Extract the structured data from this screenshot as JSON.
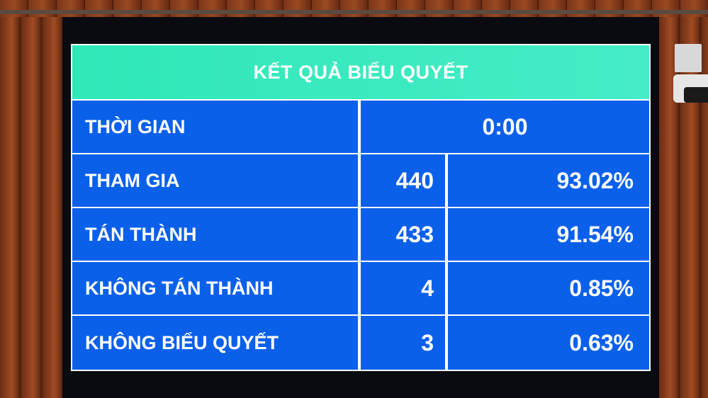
{
  "board": {
    "title": "KẾT QUẢ BIỂU QUYẾT",
    "time_label": "THỜI GIAN",
    "time_value": "0:00",
    "rows": [
      {
        "label": "THAM GIA",
        "count": "440",
        "percent": "93.02%"
      },
      {
        "label": "TÁN THÀNH",
        "count": "433",
        "percent": "91.54%"
      },
      {
        "label": "KHÔNG TÁN THÀNH",
        "count": "4",
        "percent": "0.85%"
      },
      {
        "label": "KHÔNG BIỂU QUYẾT",
        "count": "3",
        "percent": "0.63%"
      }
    ]
  },
  "colors": {
    "header": "#2fe8b8",
    "cells": "#0b60ea",
    "text": "#ffffff"
  }
}
